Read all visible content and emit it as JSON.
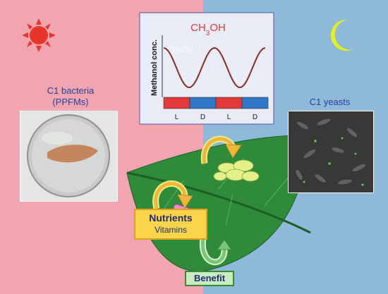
{
  "chart_panel": {
    "title_main": "CH",
    "title_sub": "3",
    "title_tail": "OH",
    "ylabel": "Methanol conc.",
    "ghost_label": "CH₃OH",
    "cycle_labels": [
      "L",
      "D",
      "L",
      "D"
    ],
    "light_color": "#e23a3a",
    "dark_color": "#2f78c8"
  },
  "chart_data": {
    "type": "line",
    "title": "CH3OH",
    "xlabel": "",
    "ylabel": "Methanol conc.",
    "categories": [
      "L",
      "D",
      "L",
      "D"
    ],
    "series": [
      {
        "values": [
          0.15,
          0.85,
          0.15,
          0.85
        ]
      }
    ]
  },
  "left_panel": {
    "label_line1": "C1 bacteria",
    "label_line2": "(PPFMs)"
  },
  "right_panel": {
    "label": "C1 yeasts"
  },
  "boxes": {
    "nutrients": "Nutrients",
    "vitamins": "Vitamins",
    "benefit": "Benefit"
  },
  "colors": {
    "day_background": "#f2a5b0",
    "night_background": "#8fb9d8",
    "sun": "#e8352a",
    "moon": "#e6ef1a",
    "leaf": "#2f8a3a"
  },
  "icons": [
    "sun-icon",
    "moon-icon",
    "leaf-icon"
  ]
}
